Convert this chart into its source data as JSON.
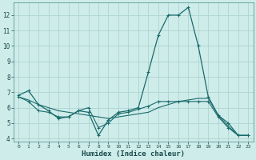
{
  "xlabel": "Humidex (Indice chaleur)",
  "background_color": "#ceecea",
  "grid_color": "#aed4d0",
  "line_color": "#1a6b6b",
  "xlim": [
    -0.5,
    23.5
  ],
  "ylim": [
    3.8,
    12.8
  ],
  "yticks": [
    4,
    5,
    6,
    7,
    8,
    9,
    10,
    11,
    12
  ],
  "xticks": [
    0,
    1,
    2,
    3,
    4,
    5,
    6,
    7,
    8,
    9,
    10,
    11,
    12,
    13,
    14,
    15,
    16,
    17,
    18,
    19,
    20,
    21,
    22,
    23
  ],
  "line1_x": [
    0,
    1,
    2,
    3,
    4,
    5,
    6,
    7,
    8,
    9,
    10,
    11,
    12,
    13,
    14,
    15,
    16,
    17,
    18,
    19,
    20,
    21,
    22,
    23
  ],
  "line1_y": [
    6.8,
    7.1,
    6.2,
    5.8,
    5.3,
    5.4,
    5.8,
    5.7,
    4.2,
    5.2,
    5.7,
    5.8,
    6.0,
    8.3,
    10.7,
    12.0,
    12.0,
    12.5,
    10.0,
    6.7,
    5.5,
    5.0,
    4.2,
    4.2
  ],
  "line2_x": [
    0,
    1,
    2,
    3,
    4,
    5,
    6,
    7,
    8,
    9,
    10,
    11,
    12,
    13,
    14,
    15,
    16,
    17,
    18,
    19,
    20,
    21,
    22,
    23
  ],
  "line2_y": [
    6.7,
    6.5,
    6.2,
    6.0,
    5.8,
    5.7,
    5.6,
    5.5,
    5.4,
    5.3,
    5.4,
    5.5,
    5.6,
    5.7,
    6.0,
    6.2,
    6.4,
    6.5,
    6.6,
    6.6,
    5.5,
    4.8,
    4.2,
    4.2
  ],
  "line3_x": [
    0,
    1,
    2,
    3,
    4,
    5,
    6,
    7,
    8,
    9,
    10,
    11,
    12,
    13,
    14,
    15,
    16,
    17,
    18,
    19,
    20,
    21,
    22,
    23
  ],
  "line3_y": [
    6.7,
    6.4,
    5.8,
    5.7,
    5.4,
    5.4,
    5.8,
    6.0,
    4.7,
    5.0,
    5.6,
    5.7,
    5.9,
    6.1,
    6.4,
    6.4,
    6.4,
    6.4,
    6.4,
    6.4,
    5.4,
    4.7,
    4.2,
    4.2
  ]
}
